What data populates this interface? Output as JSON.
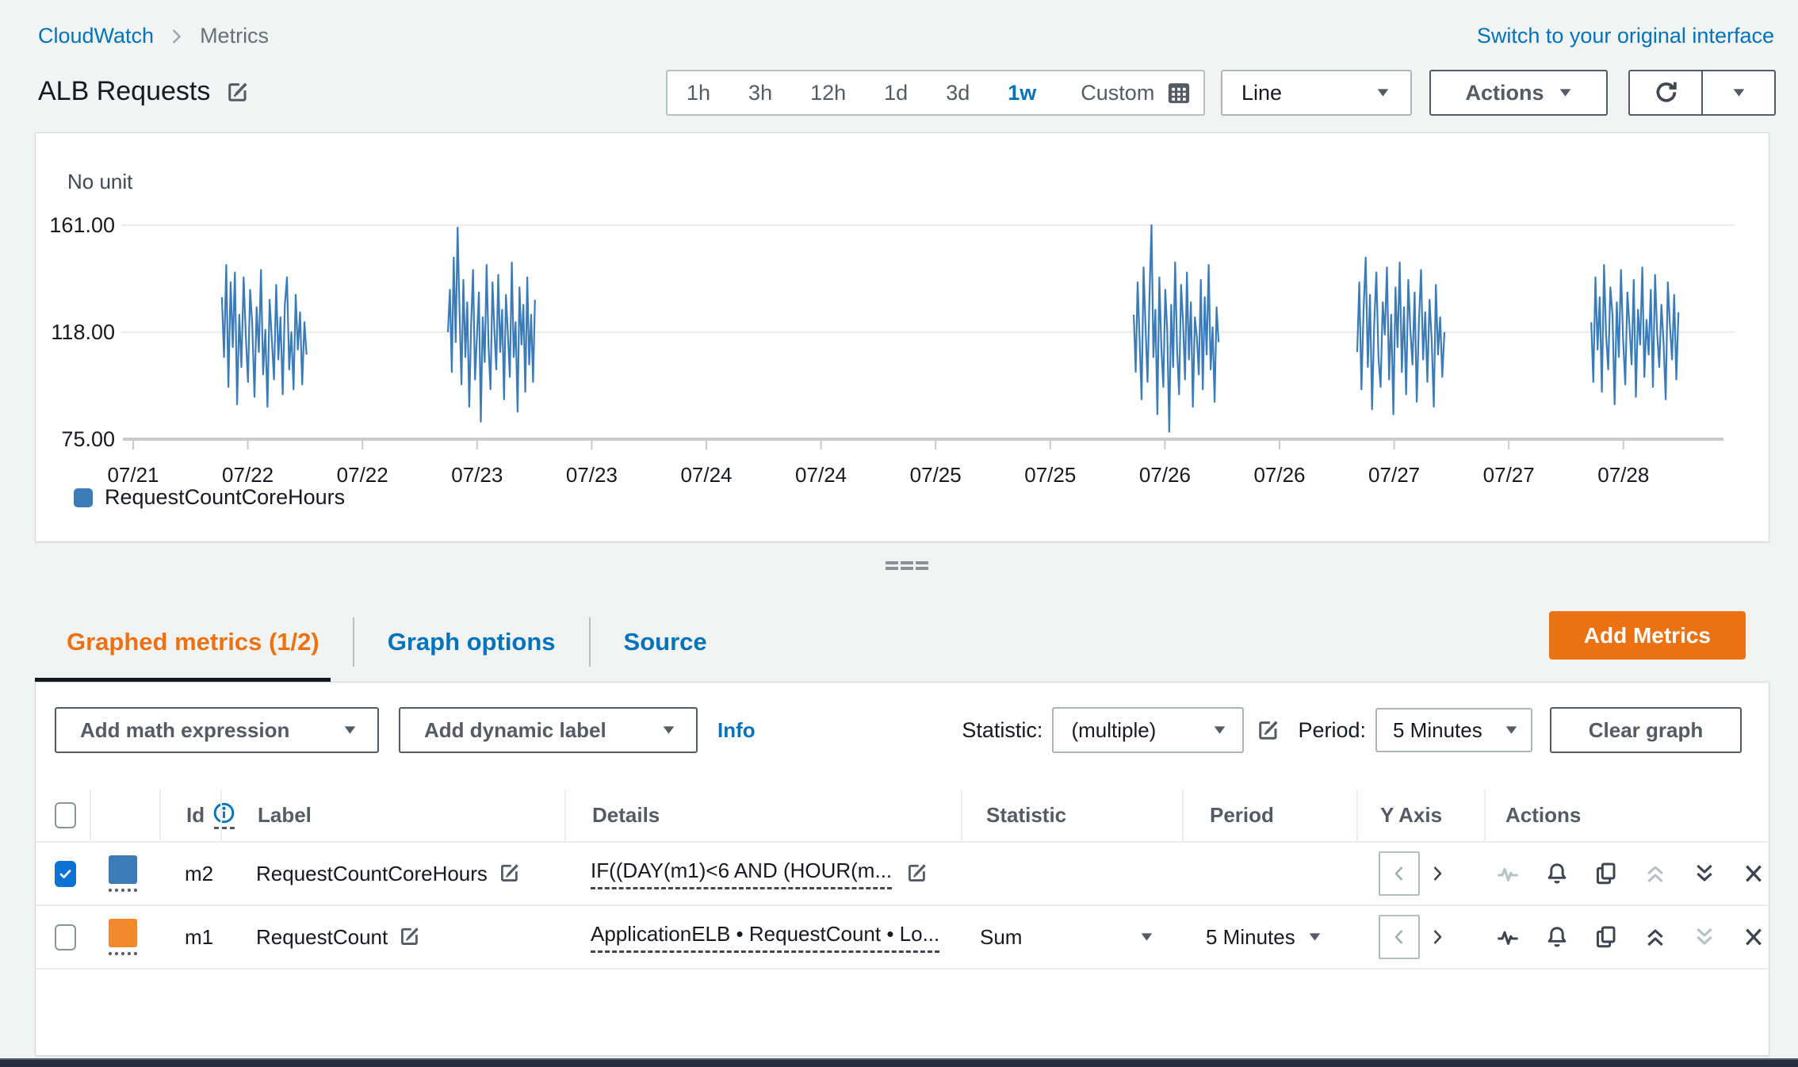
{
  "breadcrumb": {
    "root": "CloudWatch",
    "current": "Metrics"
  },
  "header": {
    "switch_link": "Switch to your original interface",
    "title": "ALB Requests"
  },
  "toolbar": {
    "ranges": [
      {
        "label": "1h",
        "selected": false
      },
      {
        "label": "3h",
        "selected": false
      },
      {
        "label": "12h",
        "selected": false
      },
      {
        "label": "1d",
        "selected": false
      },
      {
        "label": "3d",
        "selected": false
      },
      {
        "label": "1w",
        "selected": true
      }
    ],
    "custom_label": "Custom",
    "chart_type_value": "Line",
    "actions_label": "Actions"
  },
  "chart_data": {
    "type": "line",
    "unit_note": "No unit",
    "y_ticks": [
      {
        "value": 161,
        "label": "161.00"
      },
      {
        "value": 118,
        "label": "118.00"
      },
      {
        "value": 75,
        "label": "75.00"
      }
    ],
    "y_range": [
      75,
      161
    ],
    "grid": true,
    "legend_position": "bottom-left",
    "x_tick_labels": [
      "07/21",
      "07/22",
      "07/22",
      "07/23",
      "07/23",
      "07/24",
      "07/24",
      "07/25",
      "07/25",
      "07/26",
      "07/26",
      "07/27",
      "07/27",
      "07/28"
    ],
    "series": [
      {
        "name": "RequestCountCoreHours",
        "color": "#3b7cb8",
        "bursts": [
          {
            "start": 0.06,
            "end": 0.113,
            "values": [
              132,
              108,
              145,
              96,
              138,
              112,
              142,
              89,
              125,
              104,
              140,
              117,
              98,
              135,
              121,
              92,
              128,
              110,
              143,
              101,
              119,
              88,
              131,
              115,
              99,
              137,
              107,
              124,
              93,
              129,
              140,
              103,
              118,
              95,
              133,
              111,
              126,
              97,
              122,
              109
            ]
          },
          {
            "start": 0.2015,
            "end": 0.256,
            "values": [
              118,
              135,
              102,
              148,
              114,
              160,
              126,
              97,
              139,
              108,
              130,
              88,
              121,
              143,
              99,
              116,
              134,
              82,
              124,
              106,
              145,
              112,
              95,
              138,
              119,
              103,
              141,
              110,
              127,
              91,
              133,
              117,
              100,
              146,
              108,
              122,
              86,
              136,
              113,
              129,
              94,
              140,
              105,
              125,
              98,
              131
            ]
          },
          {
            "start": 0.6308,
            "end": 0.6839,
            "values": [
              125,
              102,
              138,
              115,
              91,
              144,
              120,
              98,
              133,
              161,
              108,
              127,
              85,
              140,
              112,
              96,
              135,
              118,
              78,
              129,
              104,
              146,
              111,
              93,
              137,
              122,
              99,
              142,
              107,
              130,
              88,
              124,
              116,
              101,
              139,
              95,
              132,
              109,
              145,
              103,
              120,
              90,
              128,
              114
            ]
          },
          {
            "start": 0.7707,
            "end": 0.8253,
            "values": [
              110,
              138,
              95,
              127,
              148,
              104,
              133,
              87,
              121,
              142,
              108,
              96,
              130,
              117,
              144,
              99,
              125,
              85,
              136,
              112,
              146,
              102,
              128,
              93,
              139,
              119,
              105,
              134,
              90,
              122,
              143,
              107,
              126,
              98,
              131,
              115,
              88,
              137,
              109,
              124,
              100,
              118
            ]
          },
          {
            "start": 0.9172,
            "end": 0.9718,
            "values": [
              122,
              98,
              140,
              111,
              132,
              94,
              145,
              117,
              103,
              136,
              125,
              89,
              130,
              108,
              143,
              115,
              97,
              134,
              120,
              105,
              139,
              92,
              127,
              113,
              144,
              100,
              123,
              109,
              135,
              96,
              141,
              118,
              104,
              129,
              114,
              91,
              138,
              121,
              107,
              133,
              99,
              126
            ]
          }
        ]
      }
    ],
    "legend": [
      {
        "label": "RequestCountCoreHours",
        "color": "#3b7cb8"
      }
    ]
  },
  "tabs": {
    "items": [
      {
        "label": "Graphed metrics (1/2)",
        "active": true
      },
      {
        "label": "Graph options",
        "active": false
      },
      {
        "label": "Source",
        "active": false
      }
    ],
    "add_metrics": "Add Metrics"
  },
  "metrics_toolbar": {
    "add_math": "Add math expression",
    "add_dynamic": "Add dynamic label",
    "info": "Info",
    "statistic_label": "Statistic:",
    "statistic_value": "(multiple)",
    "period_label": "Period:",
    "period_value": "5 Minutes",
    "clear": "Clear graph"
  },
  "table": {
    "columns": {
      "id": "Id",
      "label": "Label",
      "details": "Details",
      "statistic": "Statistic",
      "period": "Period",
      "yaxis": "Y Axis",
      "actions": "Actions"
    },
    "rows": [
      {
        "checked": true,
        "color": "#3b7cb8",
        "id": "m2",
        "label": "RequestCountCoreHours",
        "details": "IF((DAY(m1)<6 AND (HOUR(m...",
        "statistic": "",
        "period": "",
        "disabled_actions": [
          "alarm-pulse",
          "move-up"
        ]
      },
      {
        "checked": false,
        "color": "#f2882e",
        "id": "m1",
        "label": "RequestCount",
        "details": "ApplicationELB • RequestCount • Lo...",
        "statistic": "Sum",
        "period": "5 Minutes",
        "disabled_actions": [
          "move-down"
        ]
      }
    ]
  },
  "colors": {
    "accent_blue": "#0073bb",
    "accent_orange": "#ec7211",
    "series_blue": "#3b7cb8",
    "series_orange": "#f2882e",
    "dark_bar": "#232f3e"
  }
}
